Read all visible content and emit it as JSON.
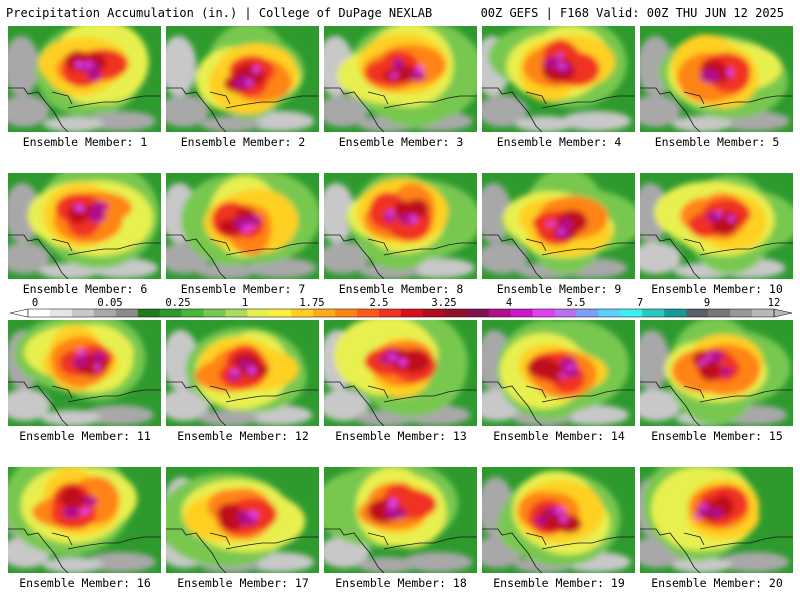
{
  "header": {
    "title": "Precipitation Accumulation (in.) | College of DuPage NEXLAB",
    "run_info": "00Z GEFS | F168 Valid: 00Z THU JUN 12 2025"
  },
  "panels": [
    {
      "label": "Ensemble Member: 1"
    },
    {
      "label": "Ensemble Member: 2"
    },
    {
      "label": "Ensemble Member: 3"
    },
    {
      "label": "Ensemble Member: 4"
    },
    {
      "label": "Ensemble Member: 5"
    },
    {
      "label": "Ensemble Member: 6"
    },
    {
      "label": "Ensemble Member: 7"
    },
    {
      "label": "Ensemble Member: 8"
    },
    {
      "label": "Ensemble Member: 9"
    },
    {
      "label": "Ensemble Member: 10"
    },
    {
      "label": "Ensemble Member: 11"
    },
    {
      "label": "Ensemble Member: 12"
    },
    {
      "label": "Ensemble Member: 13"
    },
    {
      "label": "Ensemble Member: 14"
    },
    {
      "label": "Ensemble Member: 15"
    },
    {
      "label": "Ensemble Member: 16"
    },
    {
      "label": "Ensemble Member: 17"
    },
    {
      "label": "Ensemble Member: 18"
    },
    {
      "label": "Ensemble Member: 19"
    },
    {
      "label": "Ensemble Member: 20"
    }
  ],
  "legend": {
    "tick_labels": [
      "0",
      "0.05",
      "0.25",
      "1",
      "1.75",
      "2.5",
      "3.25",
      "4",
      "5.5",
      "7",
      "9",
      "12"
    ],
    "colors": [
      "#ffffff",
      "#e6e6e6",
      "#c8c8c8",
      "#a8a8a8",
      "#8c8c8c",
      "#207a20",
      "#2e9a2e",
      "#44b83a",
      "#78c850",
      "#a8dc5a",
      "#e8f050",
      "#fff040",
      "#ffd020",
      "#ffaa18",
      "#ff8418",
      "#ff5a18",
      "#f03020",
      "#d8101c",
      "#b00e1c",
      "#901028",
      "#801050",
      "#b0108c",
      "#d018c8",
      "#e040f0",
      "#b870f0",
      "#7aa0f8",
      "#5ad0ff",
      "#38f0f0",
      "#28c8c0",
      "#189898",
      "#586068",
      "#787878",
      "#989898",
      "#b8b8b8"
    ]
  }
}
